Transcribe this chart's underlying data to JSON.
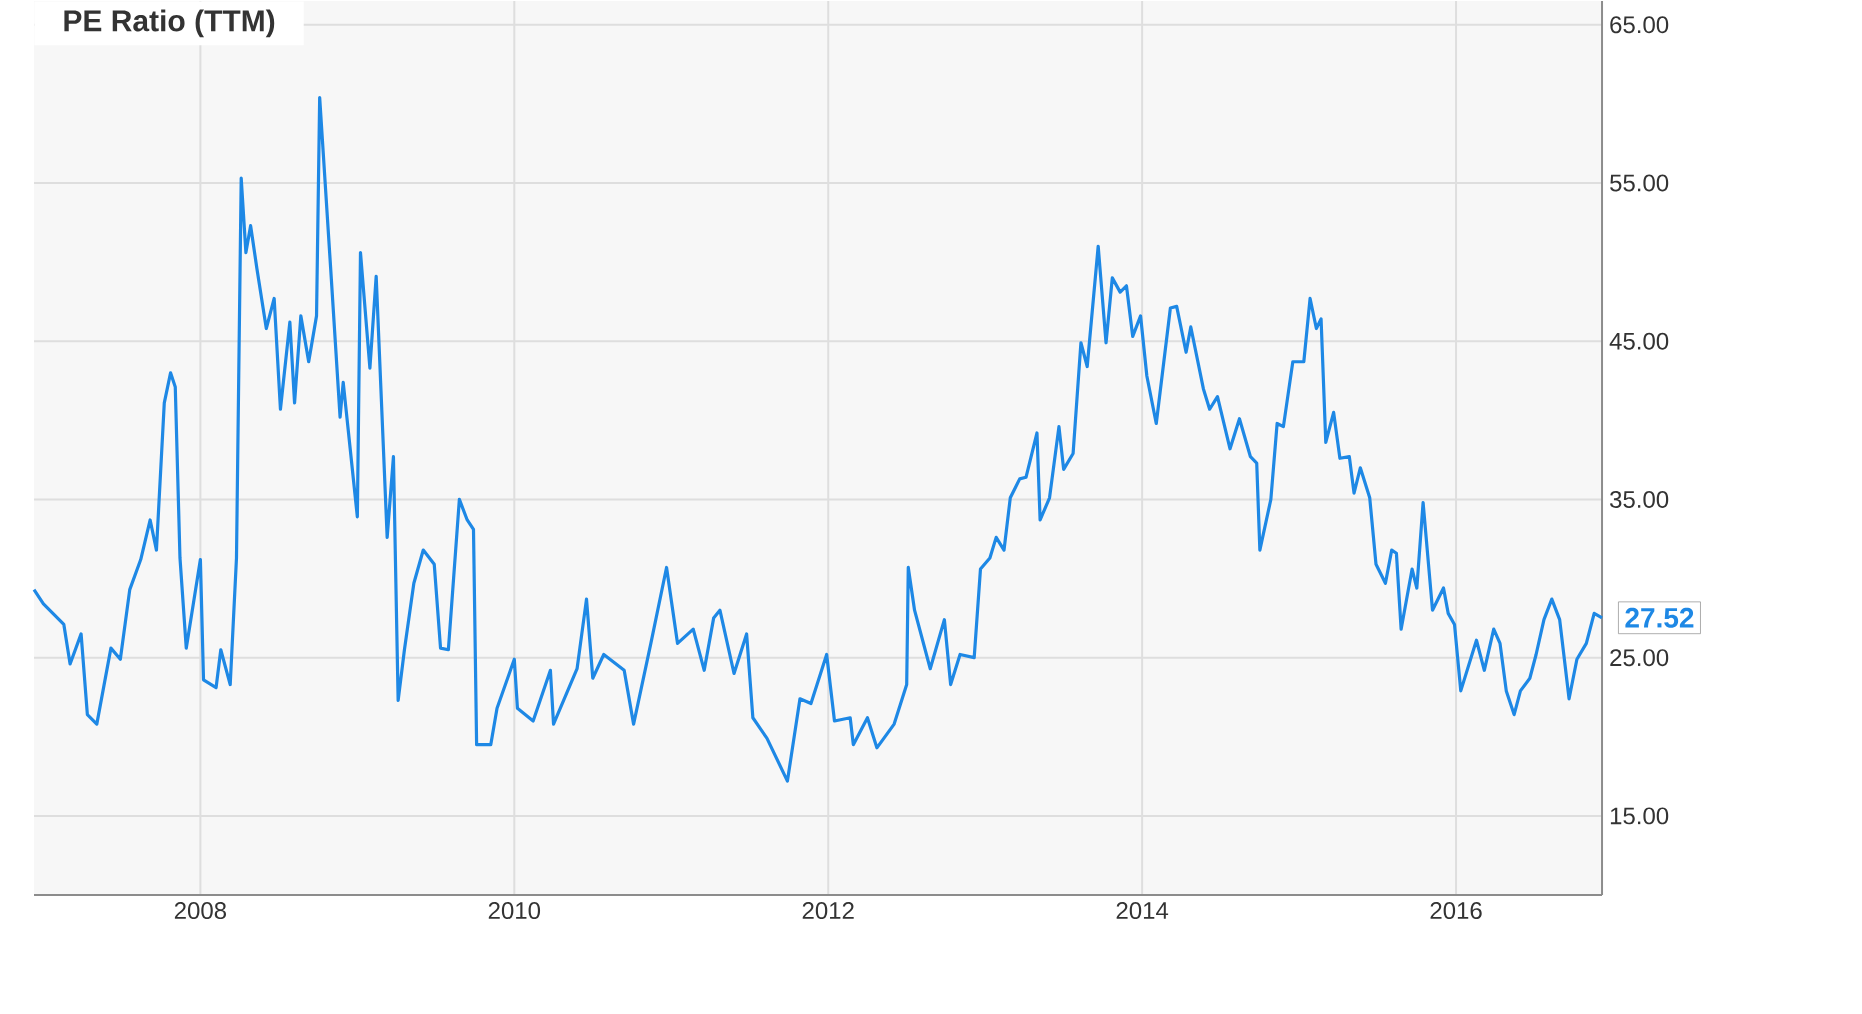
{
  "chart_data": {
    "type": "line",
    "title": "PE Ratio (TTM)",
    "x": [
      2006.94,
      2007.0,
      2007.13,
      2007.17,
      2007.24,
      2007.28,
      2007.34,
      2007.43,
      2007.49,
      2007.55,
      2007.62,
      2007.68,
      2007.72,
      2007.77,
      2007.81,
      2007.84,
      2007.87,
      2007.91,
      2008.0,
      2008.02,
      2008.1,
      2008.13,
      2008.19,
      2008.23,
      2008.26,
      2008.29,
      2008.32,
      2008.36,
      2008.42,
      2008.47,
      2008.51,
      2008.57,
      2008.6,
      2008.64,
      2008.69,
      2008.74,
      2008.76,
      2008.83,
      2008.89,
      2008.91,
      2009.0,
      2009.02,
      2009.08,
      2009.12,
      2009.19,
      2009.23,
      2009.26,
      2009.3,
      2009.36,
      2009.42,
      2009.49,
      2009.53,
      2009.58,
      2009.65,
      2009.7,
      2009.74,
      2009.76,
      2009.85,
      2009.89,
      2010.0,
      2010.02,
      2010.12,
      2010.23,
      2010.25,
      2010.4,
      2010.46,
      2010.5,
      2010.57,
      2010.7,
      2010.76,
      2010.87,
      2010.97,
      2011.04,
      2011.14,
      2011.21,
      2011.27,
      2011.31,
      2011.4,
      2011.48,
      2011.52,
      2011.61,
      2011.74,
      2011.82,
      2011.89,
      2011.99,
      2012.04,
      2012.14,
      2012.16,
      2012.25,
      2012.31,
      2012.42,
      2012.5,
      2012.51,
      2012.55,
      2012.65,
      2012.74,
      2012.78,
      2012.84,
      2012.93,
      2012.97,
      2013.03,
      2013.07,
      2013.12,
      2013.16,
      2013.22,
      2013.26,
      2013.33,
      2013.35,
      2013.41,
      2013.47,
      2013.5,
      2013.56,
      2013.61,
      2013.65,
      2013.72,
      2013.77,
      2013.81,
      2013.86,
      2013.9,
      2013.94,
      2013.99,
      2014.03,
      2014.09,
      2014.18,
      2014.22,
      2014.28,
      2014.31,
      2014.39,
      2014.43,
      2014.48,
      2014.56,
      2014.62,
      2014.69,
      2014.73,
      2014.75,
      2014.82,
      2014.86,
      2014.9,
      2014.96,
      2015.03,
      2015.07,
      2015.11,
      2015.14,
      2015.17,
      2015.22,
      2015.26,
      2015.32,
      2015.35,
      2015.39,
      2015.45,
      2015.49,
      2015.55,
      2015.59,
      2015.62,
      2015.65,
      2015.72,
      2015.75,
      2015.79,
      2015.85,
      2015.92,
      2015.95,
      2015.99,
      2016.03,
      2016.13,
      2016.18,
      2016.24,
      2016.28,
      2016.32,
      2016.37,
      2016.41,
      2016.47,
      2016.51,
      2016.56,
      2016.61,
      2016.66,
      2016.72,
      2016.77,
      2016.83,
      2016.88,
      2016.93
    ],
    "series": [
      {
        "color": "#1e88e5",
        "values": [
          29.3,
          28.4,
          27.1,
          24.6,
          26.5,
          21.4,
          20.8,
          25.6,
          24.9,
          29.3,
          31.2,
          33.7,
          31.8,
          41.1,
          43.0,
          42.1,
          31.3,
          25.6,
          31.2,
          23.6,
          23.1,
          25.5,
          23.3,
          31.3,
          55.3,
          50.6,
          52.3,
          49.6,
          45.8,
          47.7,
          40.7,
          46.2,
          41.1,
          46.6,
          43.7,
          46.6,
          60.4,
          49.6,
          40.2,
          42.4,
          33.9,
          50.6,
          43.3,
          49.1,
          32.6,
          37.7,
          22.3,
          25.5,
          29.7,
          31.8,
          30.9,
          25.6,
          25.5,
          35.0,
          33.7,
          33.1,
          19.5,
          19.5,
          21.8,
          24.9,
          21.8,
          21.0,
          24.2,
          20.8,
          24.3,
          28.7,
          23.7,
          25.2,
          24.2,
          20.8,
          25.9,
          30.7,
          25.9,
          26.8,
          24.2,
          27.5,
          28.0,
          24.0,
          26.5,
          21.2,
          19.9,
          17.2,
          22.4,
          22.1,
          25.2,
          21.0,
          21.2,
          19.5,
          21.2,
          19.3,
          20.8,
          23.3,
          30.7,
          28.0,
          24.3,
          27.4,
          23.3,
          25.2,
          25.0,
          30.6,
          31.3,
          32.6,
          31.8,
          35.1,
          36.3,
          36.4,
          39.2,
          33.7,
          35.1,
          39.6,
          36.9,
          37.9,
          44.9,
          43.4,
          51.0,
          44.9,
          49.0,
          48.1,
          48.5,
          45.3,
          46.6,
          42.8,
          39.8,
          47.1,
          47.2,
          44.3,
          45.9,
          42.0,
          40.7,
          41.5,
          38.2,
          40.1,
          37.7,
          37.3,
          31.8,
          35.0,
          39.8,
          39.6,
          43.7,
          43.7,
          47.7,
          45.8,
          46.4,
          38.6,
          40.5,
          37.6,
          37.7,
          35.4,
          37.0,
          35.1,
          30.9,
          29.7,
          31.8,
          31.6,
          26.8,
          30.6,
          29.4,
          34.8,
          28.0,
          29.4,
          27.8,
          27.1,
          22.9,
          26.1,
          24.2,
          26.8,
          25.9,
          22.9,
          21.4,
          22.9,
          23.7,
          25.2,
          27.4,
          28.7,
          27.4,
          22.4,
          24.9,
          25.9,
          27.8,
          27.52
        ]
      }
    ],
    "xlim": [
      2006.94,
      2016.93
    ],
    "ylim": [
      10,
      66.5
    ],
    "xticks": [
      2008,
      2010,
      2012,
      2014,
      2016
    ],
    "yticks": [
      {
        "value": 15,
        "label": "15.00"
      },
      {
        "value": 25,
        "label": "25.00"
      },
      {
        "value": 35,
        "label": "35.00"
      },
      {
        "value": 45,
        "label": "45.00"
      },
      {
        "value": 55,
        "label": "55.00"
      },
      {
        "value": 65,
        "label": "65.00"
      }
    ],
    "grid": true,
    "line_style": "solid",
    "annotations": [
      {
        "text": "27.52",
        "x": 2016.93,
        "y": 27.52
      }
    ]
  }
}
